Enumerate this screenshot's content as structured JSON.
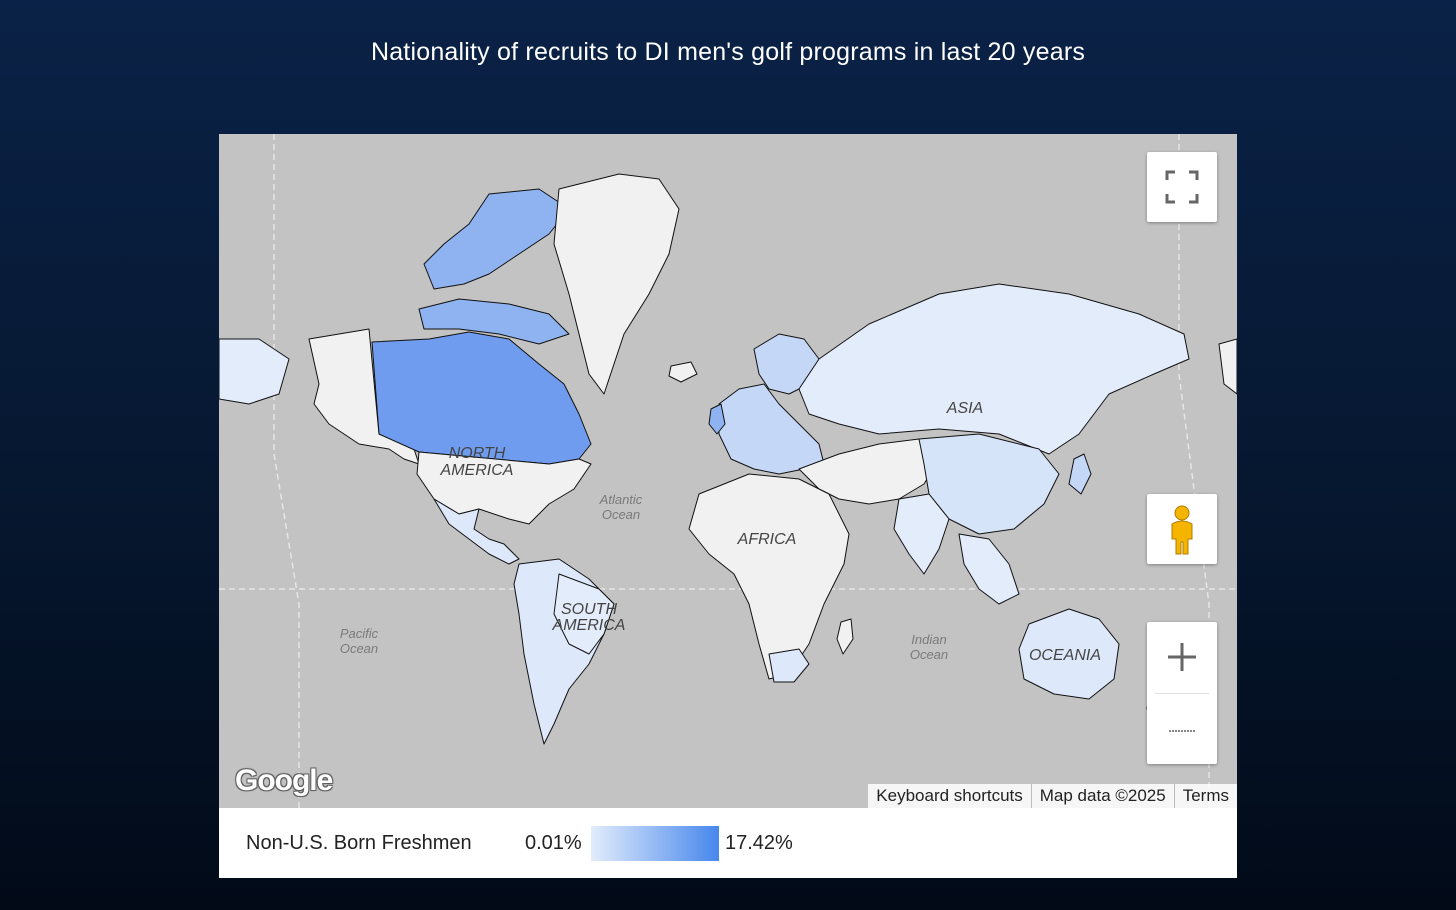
{
  "title": "Nationality of recruits to DI men's golf programs in last 20 years",
  "map": {
    "continent_labels": {
      "north_america_line1": "NORTH",
      "north_america_line2": "AMERICA",
      "south_america_line1": "SOUTH",
      "south_america_line2": "AMERICA",
      "africa": "AFRICA",
      "asia": "ASIA",
      "oceania": "OCEANIA"
    },
    "ocean_labels": {
      "atlantic_line1": "Atlantic",
      "atlantic_line2": "Ocean",
      "pacific_line1": "Pacific",
      "pacific_line2": "Ocean",
      "indian_line1": "Indian",
      "indian_line2": "Ocean"
    },
    "google_logo": "Google",
    "attribution": {
      "keyboard_shortcuts": "Keyboard shortcuts",
      "map_data": "Map data ©2025",
      "terms": "Terms"
    },
    "controls": {
      "fullscreen_icon": "fullscreen-icon",
      "pegman_icon": "pegman-icon",
      "zoom_in_icon": "plus-icon",
      "zoom_out_icon": "minus-icon"
    }
  },
  "legend": {
    "label": "Non-U.S. Born Freshmen",
    "min": "0.01%",
    "max": "17.42%",
    "color_min": "#e2ecfc",
    "color_max": "#4787ec"
  },
  "colors": {
    "water": "#c3c3c3",
    "no_data": "#f1f1f1",
    "canada": "#6f9cee",
    "greenland_top": "#8fb2f0",
    "light": "#dde8fb",
    "medium": "#c5d7f7"
  }
}
